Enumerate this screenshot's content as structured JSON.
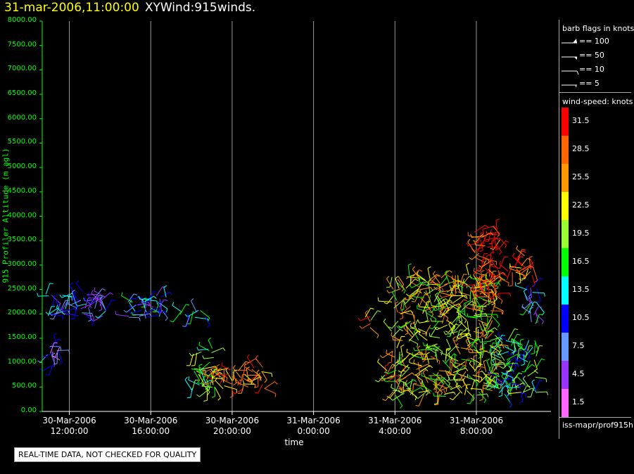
{
  "header": {
    "date": "31-mar-2006,11:00:00",
    "product": "XYWind:915winds."
  },
  "disclaimer": "REAL-TIME DATA, NOT CHECKED FOR QUALITY",
  "legend": {
    "flags_title": "barb flags in knots",
    "flags": [
      {
        "label": "== 100",
        "kind": "pennant"
      },
      {
        "label": "== 50",
        "kind": "flag"
      },
      {
        "label": "== 10",
        "kind": "full"
      },
      {
        "label": "== 5",
        "kind": "half"
      }
    ],
    "speed_title": "wind-speed: knots",
    "colorbar": [
      {
        "label": "31.5",
        "color": "#ff0000"
      },
      {
        "label": "28.5",
        "color": "#ff6600"
      },
      {
        "label": "25.5",
        "color": "#ff9900"
      },
      {
        "label": "22.5",
        "color": "#ffff00"
      },
      {
        "label": "19.5",
        "color": "#99ff33"
      },
      {
        "label": "16.5",
        "color": "#00ff00"
      },
      {
        "label": "13.5",
        "color": "#00ffff"
      },
      {
        "label": "10.5",
        "color": "#0000ff"
      },
      {
        "label": "7.5",
        "color": "#6699ff"
      },
      {
        "label": "4.5",
        "color": "#9933ff"
      },
      {
        "label": "1.5",
        "color": "#ff66ff"
      }
    ],
    "footer": "iss-mapr/prof915h"
  },
  "chart_data": {
    "type": "scatter",
    "title": "XYWind:915winds.",
    "xlabel": "time",
    "ylabel": "915 Profiler Altitude (m agl)",
    "ylim": [
      0,
      8000
    ],
    "xlim": [
      "2006-03-30T10:40",
      "2006-03-31T11:40"
    ],
    "yticks": [
      "0.00",
      "500.00",
      "1000.00",
      "1500.00",
      "2000.00",
      "2500.00",
      "3000.00",
      "3500.00",
      "4000.00",
      "4500.00",
      "5000.00",
      "5500.00",
      "6000.00",
      "6500.00",
      "7000.00",
      "7500.00",
      "8000.00"
    ],
    "xticks": [
      {
        "t": "2006-03-30T12:00",
        "line1": "30-Mar-2006",
        "line2": "12:00:00"
      },
      {
        "t": "2006-03-30T16:00",
        "line1": "30-Mar-2006",
        "line2": "16:00:00"
      },
      {
        "t": "2006-03-30T20:00",
        "line1": "30-Mar-2006",
        "line2": "20:00:00"
      },
      {
        "t": "2006-03-31T00:00",
        "line1": "31-Mar-2006",
        "line2": "0:00:00"
      },
      {
        "t": "2006-03-31T04:00",
        "line1": "31-Mar-2006",
        "line2": "4:00:00"
      },
      {
        "t": "2006-03-31T08:00",
        "line1": "31-Mar-2006",
        "line2": "8:00:00"
      }
    ],
    "grid": "vertical",
    "series_note": "wind barbs colored by wind speed (knots)",
    "clusters": [
      {
        "t_start": "2006-03-30T10:50",
        "t_end": "2006-03-30T11:40",
        "alt_min": 900,
        "alt_max": 1400,
        "speed": 6
      },
      {
        "t_start": "2006-03-30T10:50",
        "t_end": "2006-03-30T13:50",
        "alt_min": 1950,
        "alt_max": 2450,
        "speed": 9
      },
      {
        "t_start": "2006-03-30T14:50",
        "t_end": "2006-03-30T16:50",
        "alt_min": 1900,
        "alt_max": 2400,
        "speed": 11
      },
      {
        "t_start": "2006-03-30T17:10",
        "t_end": "2006-03-30T18:40",
        "alt_min": 1900,
        "alt_max": 2100,
        "speed": 12
      },
      {
        "t_start": "2006-03-30T18:00",
        "t_end": "2006-03-30T19:10",
        "alt_min": 400,
        "alt_max": 1300,
        "speed": 18
      },
      {
        "t_start": "2006-03-30T19:00",
        "t_end": "2006-03-30T21:40",
        "alt_min": 450,
        "alt_max": 950,
        "speed": 27
      },
      {
        "t_start": "2006-03-31T02:30",
        "t_end": "2006-03-31T02:50",
        "alt_min": 1700,
        "alt_max": 1950,
        "speed": 26
      },
      {
        "t_start": "2006-03-31T03:30",
        "t_end": "2006-03-31T04:00",
        "alt_min": 600,
        "alt_max": 900,
        "speed": 25
      },
      {
        "t_start": "2006-03-31T03:50",
        "t_end": "2006-03-31T09:00",
        "alt_min": 300,
        "alt_max": 2800,
        "speed": 22
      },
      {
        "t_start": "2006-03-31T07:50",
        "t_end": "2006-03-31T09:10",
        "alt_min": 2300,
        "alt_max": 3800,
        "speed": 31
      },
      {
        "t_start": "2006-03-31T09:30",
        "t_end": "2006-03-31T10:50",
        "alt_min": 2700,
        "alt_max": 3200,
        "speed": 28
      },
      {
        "t_start": "2006-03-31T09:00",
        "t_end": "2006-03-31T11:00",
        "alt_min": 300,
        "alt_max": 1500,
        "speed": 16
      },
      {
        "t_start": "2006-03-31T10:20",
        "t_end": "2006-03-31T11:00",
        "alt_min": 1800,
        "alt_max": 2600,
        "speed": 10
      }
    ]
  }
}
